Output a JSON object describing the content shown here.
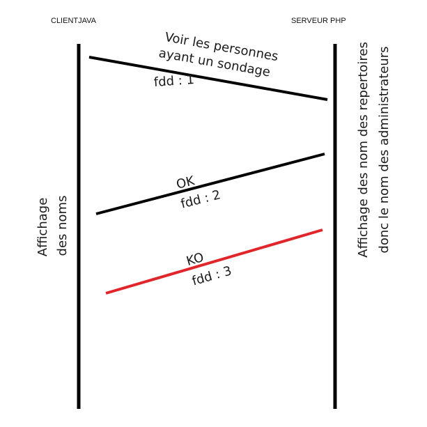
{
  "actors": {
    "client": "CLIENTJAVA",
    "server": "SERVEUR PHP"
  },
  "messages": [
    {
      "line1": "Voir les personnes",
      "line2": "ayant un sondage",
      "fd": "fdd : 1",
      "color": "#000000"
    },
    {
      "line1": "OK",
      "fd": "fdd : 2",
      "color": "#000000"
    },
    {
      "line1": "KO",
      "fd": "fdd : 3",
      "color": "#e0262b"
    }
  ],
  "client_note": {
    "line1": "Affichage",
    "line2": "des noms"
  },
  "server_note": {
    "line1": "Affichage des nom des repertoires",
    "line2": "donc le nom des administrateurs"
  }
}
